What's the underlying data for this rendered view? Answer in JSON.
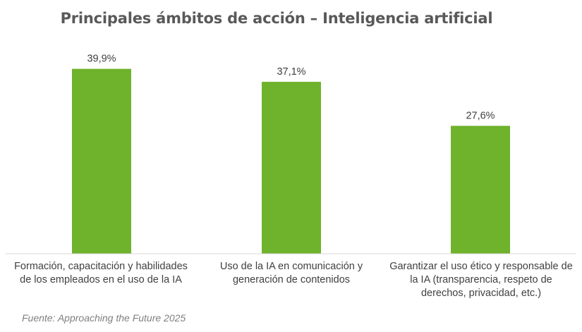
{
  "chart_data": {
    "type": "bar",
    "title": "Principales ámbitos de acción – Inteligencia artificial",
    "categories": [
      "Formación, capacitación y habilidades de los empleados en el uso de la IA",
      "Uso de la IA en comunicación y generación de contenidos",
      "Garantizar el uso ético y responsable de la IA (transparencia, respeto de derechos, privacidad, etc.)"
    ],
    "values": [
      39.9,
      37.1,
      27.6
    ],
    "data_labels": [
      "39,9%",
      "37,1%",
      "27,6%"
    ],
    "bar_color": "#6fb22c",
    "ylim": [
      0,
      40
    ],
    "grid": false,
    "legend": "none",
    "xlabel": "",
    "ylabel": ""
  },
  "source": "Fuente: Approaching the Future 2025"
}
